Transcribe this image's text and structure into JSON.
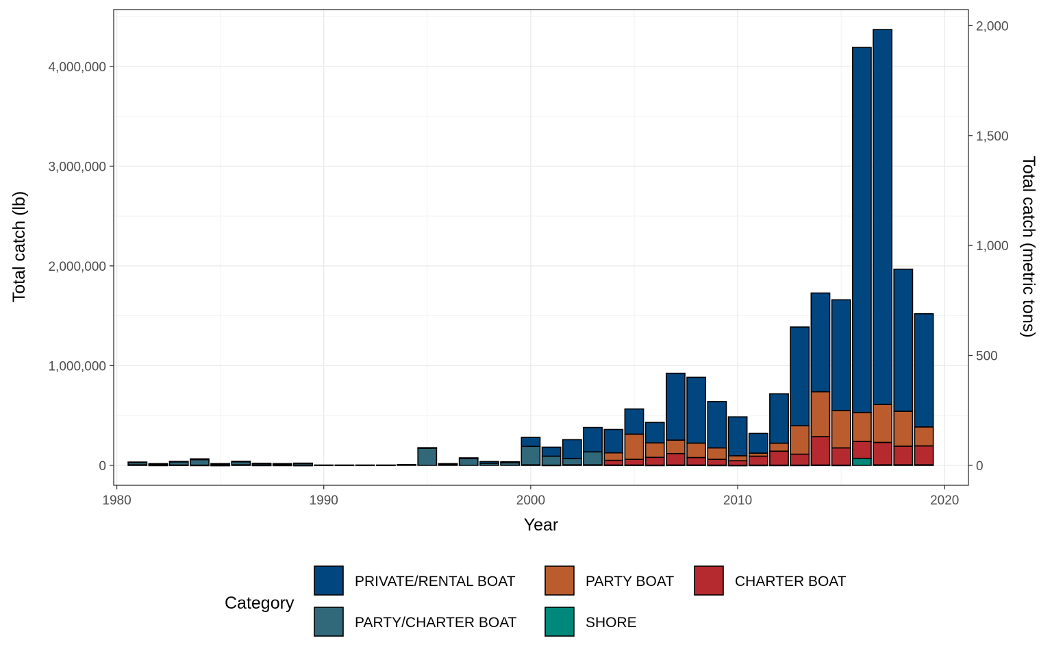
{
  "chart_data": {
    "type": "bar",
    "stacked": true,
    "xlabel": "Year",
    "ylabel": "Total catch (lb)",
    "y2label": "Total catch (metric tons)",
    "xlim": [
      1979.85,
      2021.15
    ],
    "ylim": [
      -200000,
      4570000
    ],
    "xticks": [
      1980,
      1990,
      2000,
      2010,
      2020
    ],
    "xtick_labels": [
      "1980",
      "1990",
      "2000",
      "2010",
      "2020"
    ],
    "yticks": [
      0,
      1000000,
      2000000,
      3000000,
      4000000
    ],
    "ytick_labels": [
      "0",
      "1,000,000",
      "2,000,000",
      "3,000,000",
      "4,000,000"
    ],
    "y2ticks": [
      0,
      500,
      1000,
      1500,
      2000
    ],
    "y2tick_labels": [
      "0",
      "500",
      "1,000",
      "1,500",
      "2,000"
    ],
    "grid": true,
    "legend": {
      "title": "Category",
      "position": "bottom"
    },
    "x": [
      1981,
      1982,
      1983,
      1984,
      1985,
      1986,
      1987,
      1988,
      1989,
      1990,
      1991,
      1992,
      1993,
      1994,
      1995,
      1996,
      1997,
      1998,
      1999,
      2000,
      2001,
      2002,
      2003,
      2004,
      2005,
      2006,
      2007,
      2008,
      2009,
      2010,
      2011,
      2012,
      2013,
      2014,
      2015,
      2016,
      2017,
      2018,
      2019
    ],
    "series": [
      {
        "name": "SHORE",
        "color": "#00897b",
        "values": [
          5000,
          2000,
          3000,
          2000,
          1000,
          5000,
          2000,
          2000,
          1000,
          0,
          0,
          0,
          0,
          0,
          0,
          0,
          0,
          0,
          0,
          5000,
          2000,
          5000,
          5000,
          3000,
          3000,
          2000,
          3000,
          3000,
          2000,
          1000,
          2000,
          2000,
          2000,
          3000,
          2000,
          70000,
          5000,
          5000,
          5000
        ]
      },
      {
        "name": "CHARTER BOAT",
        "color": "#b52a2f",
        "values": [
          0,
          0,
          0,
          0,
          0,
          0,
          0,
          0,
          0,
          0,
          0,
          0,
          0,
          0,
          0,
          0,
          0,
          0,
          0,
          0,
          0,
          0,
          0,
          47000,
          57000,
          78000,
          115000,
          75000,
          58000,
          45000,
          90000,
          140000,
          110000,
          285000,
          173000,
          170000,
          225000,
          187000,
          190000
        ]
      },
      {
        "name": "PARTY BOAT",
        "color": "#bb5c2f",
        "values": [
          0,
          0,
          0,
          0,
          0,
          0,
          0,
          0,
          0,
          0,
          0,
          0,
          0,
          0,
          0,
          0,
          0,
          0,
          0,
          0,
          0,
          0,
          0,
          75000,
          253000,
          145000,
          135000,
          145000,
          115000,
          50000,
          30000,
          80000,
          285000,
          450000,
          375000,
          290000,
          380000,
          350000,
          190000
        ]
      },
      {
        "name": "PARTY/CHARTER BOAT",
        "color": "#31697b",
        "values": [
          25000,
          13000,
          33000,
          55000,
          14000,
          32000,
          15000,
          13000,
          18000,
          3000,
          3000,
          3000,
          3000,
          8000,
          170000,
          15000,
          68000,
          21000,
          26000,
          185000,
          90000,
          62000,
          130000,
          0,
          0,
          0,
          0,
          0,
          0,
          0,
          0,
          0,
          0,
          0,
          0,
          0,
          0,
          0,
          0
        ]
      },
      {
        "name": "PRIVATE/RENTAL BOAT",
        "color": "#02467f",
        "values": [
          3000,
          2000,
          3000,
          8000,
          2000,
          3000,
          3000,
          2000,
          3000,
          0,
          0,
          0,
          0,
          0,
          7000,
          2000,
          7000,
          17000,
          10000,
          90000,
          90000,
          190000,
          245000,
          235000,
          252000,
          205000,
          670000,
          660000,
          465000,
          390000,
          198000,
          495000,
          990000,
          990000,
          1110000,
          3660000,
          3760000,
          1425000,
          1135000
        ]
      }
    ]
  },
  "legend_rows": [
    [
      "PRIVATE/RENTAL BOAT",
      "PARTY BOAT",
      "CHARTER BOAT"
    ],
    [
      "PARTY/CHARTER BOAT",
      "SHORE"
    ]
  ]
}
